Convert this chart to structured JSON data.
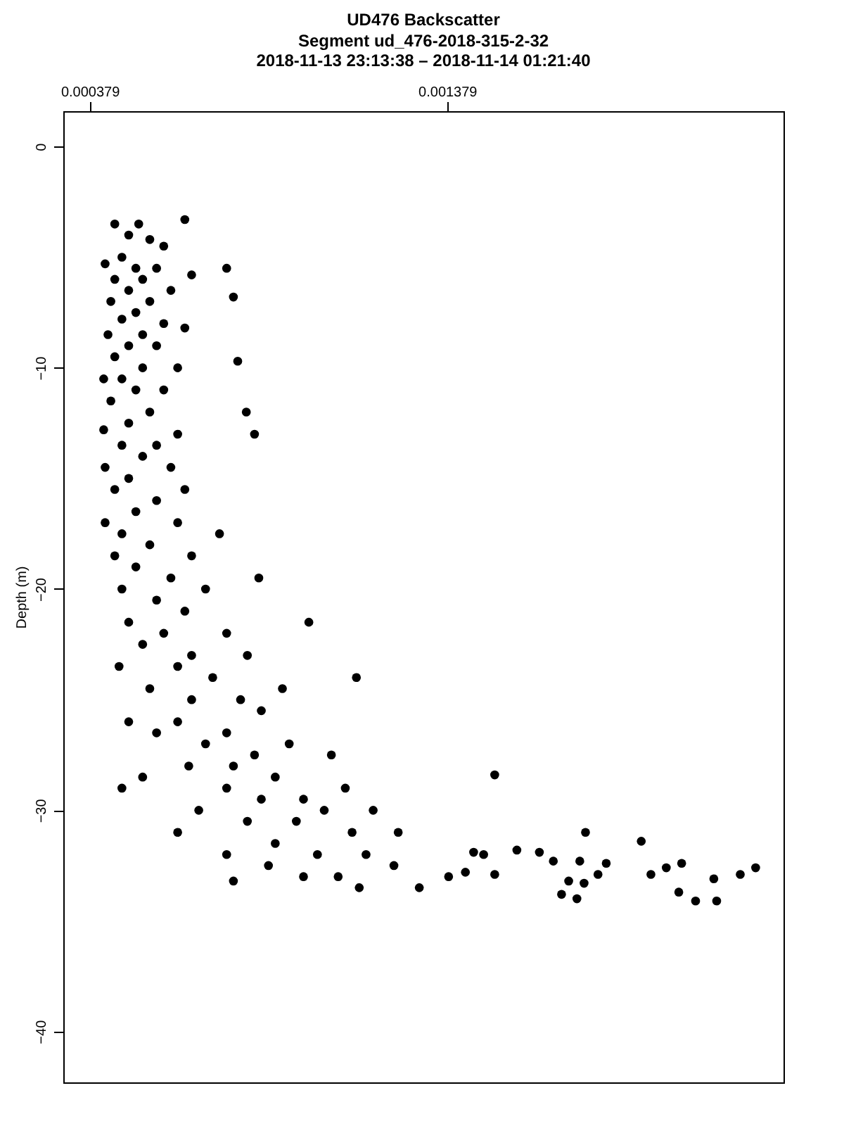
{
  "chart_data": {
    "type": "scatter",
    "title": "UD476 Backscatter",
    "subtitle": "Segment ud_476-2018-315-2-32\n2018-11-13 23:13:38 – 2018-11-14 01:21:40",
    "ylabel": "Depth (m)",
    "xlim": [
      0.000305,
      0.00232
    ],
    "ylim": [
      -42.3,
      1.6
    ],
    "xticks": [
      0.000379,
      0.001379
    ],
    "yticks": [
      0,
      -10,
      -20,
      -30,
      -40
    ],
    "grid": false,
    "marker": "circle",
    "series": [
      {
        "color": "#000000",
        "x": [
          0.000449,
          0.000516,
          0.000645,
          0.000488,
          0.000547,
          0.000586,
          0.000469,
          0.000422,
          0.000508,
          0.000566,
          0.000762,
          0.000664,
          0.000449,
          0.000527,
          0.000488,
          0.000606,
          0.000781,
          0.000438,
          0.000547,
          0.000508,
          0.000469,
          0.000586,
          0.000645,
          0.00043,
          0.000527,
          0.000488,
          0.000566,
          0.000449,
          0.000793,
          0.000527,
          0.000625,
          0.000418,
          0.000469,
          0.000586,
          0.000508,
          0.000438,
          0.000547,
          0.000817,
          0.000488,
          0.000418,
          0.000625,
          0.00084,
          0.000469,
          0.000566,
          0.000527,
          0.000422,
          0.000606,
          0.000488,
          0.000645,
          0.000449,
          0.000566,
          0.000508,
          0.000422,
          0.000625,
          0.000469,
          0.000742,
          0.000547,
          0.000449,
          0.000664,
          0.000508,
          0.000606,
          0.000852,
          0.000469,
          0.000703,
          0.000566,
          0.000645,
          0.000992,
          0.000488,
          0.000762,
          0.000586,
          0.000527,
          0.000664,
          0.00082,
          0.000461,
          0.000625,
          0.000723,
          0.001125,
          0.000547,
          0.000918,
          0.000664,
          0.000801,
          0.000859,
          0.000488,
          0.000625,
          0.000762,
          0.000566,
          0.000937,
          0.000703,
          0.00084,
          0.001055,
          0.000656,
          0.000781,
          0.000527,
          0.000898,
          0.000469,
          0.000762,
          0.001094,
          0.000859,
          0.000977,
          0.000684,
          0.001035,
          0.001172,
          0.00082,
          0.000957,
          0.000625,
          0.001113,
          0.001242,
          0.000898,
          0.000762,
          0.001016,
          0.001152,
          0.000879,
          0.00123,
          0.000977,
          0.001074,
          0.000781,
          0.001133,
          0.001301,
          0.001383,
          0.00143,
          0.001453,
          0.001481,
          0.001512,
          0.001512,
          0.001574,
          0.001637,
          0.001676,
          0.001699,
          0.001719,
          0.001742,
          0.00175,
          0.001762,
          0.001766,
          0.001801,
          0.001824,
          0.001922,
          0.001949,
          0.001992,
          0.002027,
          0.002035,
          0.002074,
          0.002125,
          0.002133,
          0.002199,
          0.002242
        ],
        "values": [
          -3.5,
          -3.5,
          -3.3,
          -4,
          -4.2,
          -4.5,
          -5,
          -5.3,
          -5.5,
          -5.5,
          -5.5,
          -5.8,
          -6,
          -6,
          -6.5,
          -6.5,
          -6.8,
          -7,
          -7,
          -7.5,
          -7.8,
          -8,
          -8.2,
          -8.5,
          -8.5,
          -9,
          -9,
          -9.5,
          -9.7,
          -10,
          -10,
          -10.5,
          -10.5,
          -11,
          -11,
          -11.5,
          -12,
          -12,
          -12.5,
          -12.8,
          -13,
          -13,
          -13.5,
          -13.5,
          -14,
          -14.5,
          -14.5,
          -15,
          -15.5,
          -15.5,
          -16,
          -16.5,
          -17,
          -17,
          -17.5,
          -17.5,
          -18,
          -18.5,
          -18.5,
          -19,
          -19.5,
          -19.5,
          -20,
          -20,
          -20.5,
          -21,
          -21.5,
          -21.5,
          -22,
          -22,
          -22.5,
          -23,
          -23,
          -23.5,
          -23.5,
          -24,
          -24,
          -24.5,
          -24.5,
          -25,
          -25,
          -25.5,
          -26,
          -26,
          -26.5,
          -26.5,
          -27,
          -27,
          -27.5,
          -27.5,
          -28,
          -28,
          -28.5,
          -28.5,
          -29,
          -29,
          -29,
          -29.5,
          -29.5,
          -30,
          -30,
          -30,
          -30.5,
          -30.5,
          -31,
          -31,
          -31,
          -31.5,
          -32,
          -32,
          -32,
          -32.5,
          -32.5,
          -33,
          -33,
          -33.2,
          -33.5,
          -33.5,
          -33,
          -32.8,
          -31.9,
          -32,
          -32.9,
          -28.4,
          -31.8,
          -31.9,
          -32.3,
          -33.8,
          -33.2,
          -34,
          -32.3,
          -33.3,
          -31,
          -32.9,
          -32.4,
          -31.4,
          -32.9,
          -32.6,
          -33.7,
          -32.4,
          -34.1,
          -33.1,
          -34.1,
          -32.9,
          -32.6
        ]
      }
    ]
  }
}
